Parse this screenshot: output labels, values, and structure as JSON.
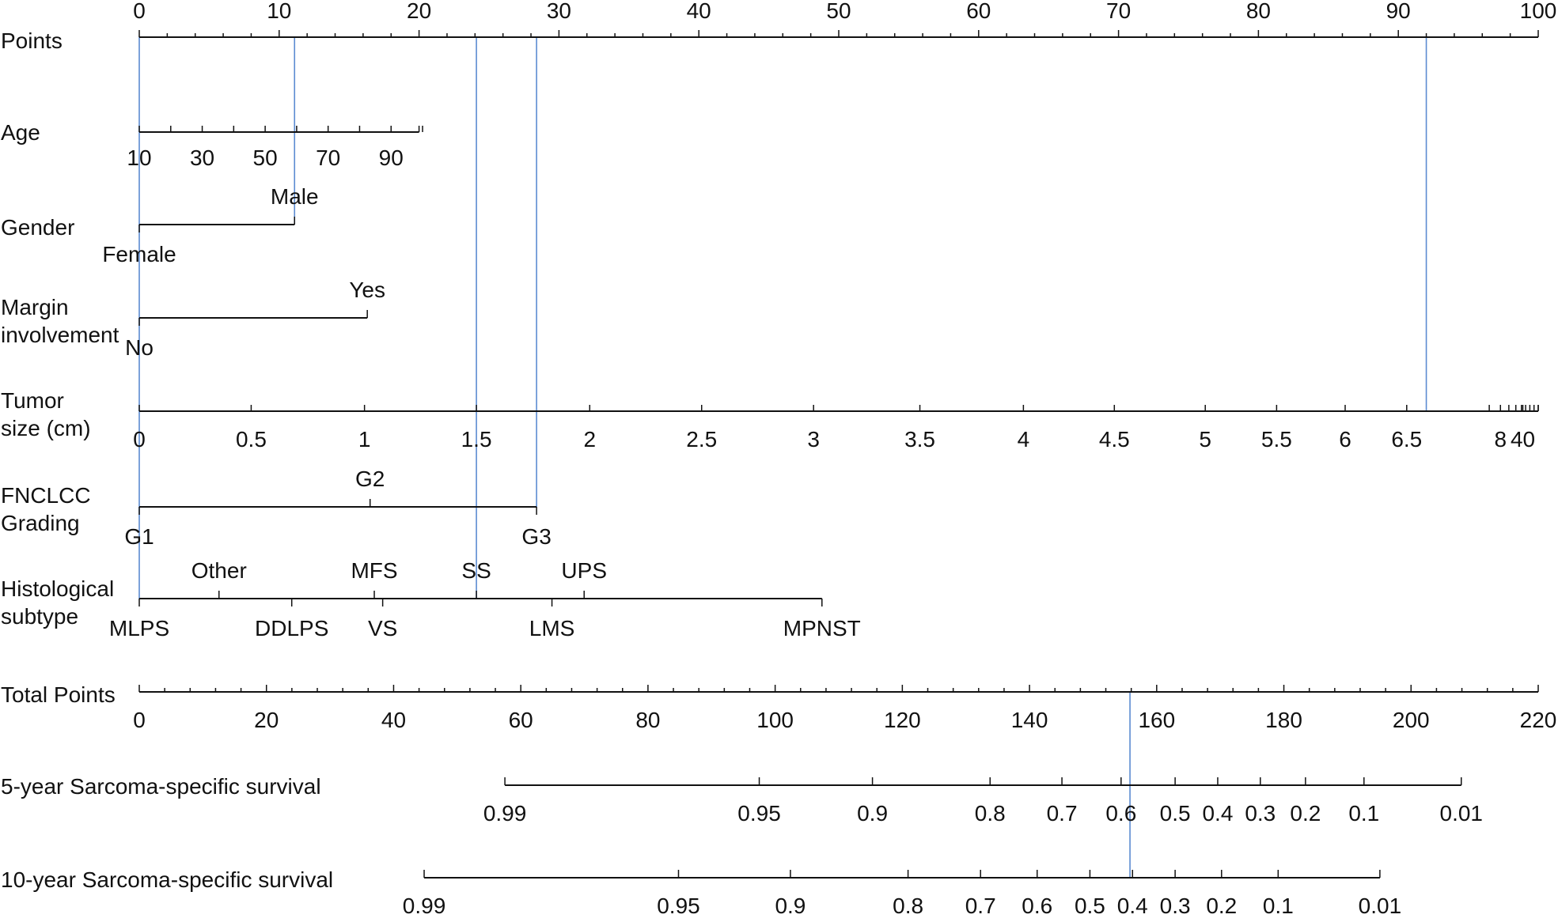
{
  "chart_data": {
    "type": "nomogram",
    "title": "",
    "colors": {
      "axis": "#111111",
      "reference_line": "#5b8bd1"
    },
    "rows": [
      {
        "id": "points",
        "label_lines": [
          "Points"
        ],
        "scale": {
          "min": 0,
          "max": 100
        },
        "ticks": [
          {
            "value": 0,
            "label": "0"
          },
          {
            "value": 10,
            "label": "10"
          },
          {
            "value": 20,
            "label": "20"
          },
          {
            "value": 30,
            "label": "30"
          },
          {
            "value": 40,
            "label": "40"
          },
          {
            "value": 50,
            "label": "50"
          },
          {
            "value": 60,
            "label": "60"
          },
          {
            "value": 70,
            "label": "70"
          },
          {
            "value": 80,
            "label": "80"
          },
          {
            "value": 90,
            "label": "90"
          },
          {
            "value": 100,
            "label": "100"
          }
        ]
      },
      {
        "id": "age",
        "label_lines": [
          "Age"
        ],
        "ticks": [
          {
            "points": 0.0,
            "label": "10"
          },
          {
            "points": 4.5,
            "label": "30"
          },
          {
            "points": 9.0,
            "label": "50"
          },
          {
            "points": 13.5,
            "label": "70"
          },
          {
            "points": 18.0,
            "label": "90"
          }
        ],
        "axis_end_points": 20.0
      },
      {
        "id": "gender",
        "label_lines": [
          "Gender"
        ],
        "categories": [
          {
            "label": "Female",
            "points": 0.0,
            "side": "below"
          },
          {
            "label": "Male",
            "points": 11.1,
            "side": "above"
          }
        ]
      },
      {
        "id": "margin",
        "label_lines": [
          "Margin",
          "involvement"
        ],
        "categories": [
          {
            "label": "No",
            "points": 0.0,
            "side": "below"
          },
          {
            "label": "Yes",
            "points": 16.3,
            "side": "above"
          }
        ]
      },
      {
        "id": "tumor_size",
        "label_lines": [
          "Tumor",
          "size (cm)"
        ],
        "ticks": [
          {
            "points": 0.0,
            "label": "0"
          },
          {
            "points": 8.0,
            "label": "0.5"
          },
          {
            "points": 16.1,
            "label": "1"
          },
          {
            "points": 24.1,
            "label": "1.5"
          },
          {
            "points": 32.2,
            "label": "2"
          },
          {
            "points": 40.2,
            "label": "2.5"
          },
          {
            "points": 48.2,
            "label": "3"
          },
          {
            "points": 55.8,
            "label": "3.5"
          },
          {
            "points": 63.2,
            "label": "4"
          },
          {
            "points": 69.7,
            "label": "4.5"
          },
          {
            "points": 76.2,
            "label": "5"
          },
          {
            "points": 81.3,
            "label": "5.5"
          },
          {
            "points": 86.2,
            "label": "6"
          },
          {
            "points": 90.6,
            "label": "6.5"
          },
          {
            "points": 97.3,
            "label": "8"
          },
          {
            "points": 98.9,
            "label": "40"
          }
        ],
        "minor_tick_points": [
          96.5,
          97.9,
          98.4,
          98.8,
          99.1,
          99.4,
          99.7,
          100.0
        ],
        "axis_end_points": 100.0
      },
      {
        "id": "grading",
        "label_lines": [
          "FNCLCC",
          "Grading"
        ],
        "categories": [
          {
            "label": "G1",
            "points": 0.0,
            "side": "below"
          },
          {
            "label": "G2",
            "points": 16.5,
            "side": "above"
          },
          {
            "label": "G3",
            "points": 28.4,
            "side": "below"
          }
        ]
      },
      {
        "id": "histology",
        "label_lines": [
          "Histological",
          "subtype"
        ],
        "categories": [
          {
            "label": "MLPS",
            "points": 0.0,
            "side": "below"
          },
          {
            "label": "Other",
            "points": 5.7,
            "side": "above"
          },
          {
            "label": "DDLPS",
            "points": 10.9,
            "side": "below"
          },
          {
            "label": "MFS",
            "points": 16.8,
            "side": "above"
          },
          {
            "label": "VS",
            "points": 17.4,
            "side": "below"
          },
          {
            "label": "SS",
            "points": 24.1,
            "side": "above"
          },
          {
            "label": "LMS",
            "points": 29.5,
            "side": "below"
          },
          {
            "label": "UPS",
            "points": 31.8,
            "side": "above"
          },
          {
            "label": "MPNST",
            "points": 48.8,
            "side": "below"
          }
        ]
      },
      {
        "id": "total_points",
        "label_lines": [
          "Total Points"
        ],
        "scale": {
          "min": 0,
          "max": 220
        },
        "ticks": [
          {
            "value": 0,
            "label": "0"
          },
          {
            "value": 20,
            "label": "20"
          },
          {
            "value": 40,
            "label": "40"
          },
          {
            "value": 60,
            "label": "60"
          },
          {
            "value": 80,
            "label": "80"
          },
          {
            "value": 100,
            "label": "100"
          },
          {
            "value": 120,
            "label": "120"
          },
          {
            "value": 140,
            "label": "140"
          },
          {
            "value": 160,
            "label": "160"
          },
          {
            "value": 180,
            "label": "180"
          },
          {
            "value": 200,
            "label": "200"
          },
          {
            "value": 220,
            "label": "220"
          }
        ]
      },
      {
        "id": "surv5",
        "label_lines": [
          "5-year Sarcoma-specific survival"
        ],
        "ticks": [
          {
            "total": 57.5,
            "label": "0.99"
          },
          {
            "total": 97.5,
            "label": "0.95"
          },
          {
            "total": 115.3,
            "label": "0.9"
          },
          {
            "total": 133.8,
            "label": "0.8"
          },
          {
            "total": 145.1,
            "label": "0.7"
          },
          {
            "total": 154.4,
            "label": "0.6"
          },
          {
            "total": 162.9,
            "label": "0.5"
          },
          {
            "total": 169.6,
            "label": "0.4"
          },
          {
            "total": 176.3,
            "label": "0.3"
          },
          {
            "total": 183.4,
            "label": "0.2"
          },
          {
            "total": 192.6,
            "label": "0.1"
          },
          {
            "total": 207.9,
            "label": "0.01"
          }
        ]
      },
      {
        "id": "surv10",
        "label_lines": [
          "10-year Sarcoma-specific survival"
        ],
        "ticks": [
          {
            "total": 44.8,
            "label": "0.99"
          },
          {
            "total": 84.8,
            "label": "0.95"
          },
          {
            "total": 102.4,
            "label": "0.9"
          },
          {
            "total": 120.9,
            "label": "0.8"
          },
          {
            "total": 132.3,
            "label": "0.7"
          },
          {
            "total": 141.2,
            "label": "0.6"
          },
          {
            "total": 149.5,
            "label": "0.5"
          },
          {
            "total": 156.2,
            "label": "0.4"
          },
          {
            "total": 162.9,
            "label": "0.3"
          },
          {
            "total": 170.2,
            "label": "0.2"
          },
          {
            "total": 179.1,
            "label": "0.1"
          },
          {
            "total": 195.1,
            "label": "0.01"
          }
        ]
      }
    ],
    "reference_lines": [
      {
        "scale": "points",
        "value": 0.0,
        "from_row": "points",
        "to_row": "histology"
      },
      {
        "scale": "points",
        "value": 11.1,
        "from_row": "points",
        "to_row": "gender"
      },
      {
        "scale": "points",
        "value": 24.1,
        "from_row": "points",
        "to_row": "histology"
      },
      {
        "scale": "points",
        "value": 28.4,
        "from_row": "points",
        "to_row": "grading"
      },
      {
        "scale": "points",
        "value": 92.0,
        "from_row": "points",
        "to_row": "tumor_size"
      },
      {
        "scale": "total",
        "value": 155.8,
        "from_row": "total_points",
        "to_row": "surv10"
      }
    ]
  }
}
